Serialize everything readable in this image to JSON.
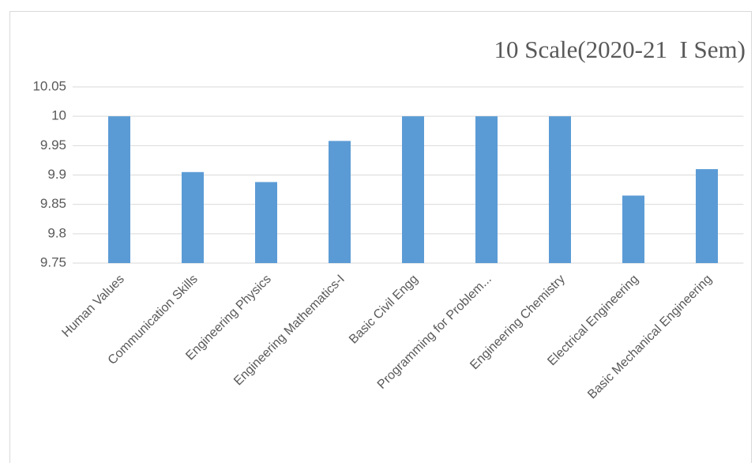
{
  "chart_data": {
    "type": "bar",
    "title": "10 Scale(2020-21  I Sem)",
    "categories": [
      "Human Values",
      "Communication Skills",
      "Engineering Physics",
      "Engineering Mathematics-I",
      "Basic Civil Engg",
      "Programming for Problem...",
      "Engineering Chemistry",
      "Electrical Engineering",
      "Basic Mechanical Engineering"
    ],
    "values": [
      10,
      9.905,
      9.888,
      9.958,
      10,
      10,
      10,
      9.865,
      9.91
    ],
    "color": "#5b9bd5",
    "ylim": [
      9.75,
      10.05
    ],
    "yticks": [
      9.75,
      9.8,
      9.85,
      9.9,
      9.95,
      10,
      10.05
    ],
    "grid": true
  }
}
